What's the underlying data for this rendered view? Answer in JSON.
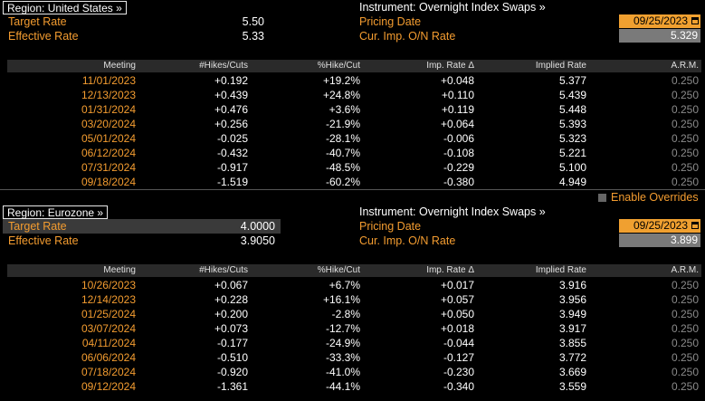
{
  "us": {
    "region_label": "Region: United States »",
    "target_rate_label": "Target Rate",
    "target_rate_value": "5.50",
    "effective_rate_label": "Effective Rate",
    "effective_rate_value": "5.33",
    "instrument": "Instrument: Overnight Index Swaps »",
    "pricing_date_label": "Pricing Date",
    "pricing_date_value": "09/25/2023",
    "cur_imp_label": "Cur. Imp. O/N Rate",
    "cur_imp_value": "5.329",
    "headers": [
      "Meeting",
      "#Hikes/Cuts",
      "%Hike/Cut",
      "Imp. Rate Δ",
      "Implied Rate",
      "A.R.M."
    ],
    "rows": [
      [
        "11/01/2023",
        "+0.192",
        "+19.2%",
        "+0.048",
        "5.377",
        "0.250"
      ],
      [
        "12/13/2023",
        "+0.439",
        "+24.8%",
        "+0.110",
        "5.439",
        "0.250"
      ],
      [
        "01/31/2024",
        "+0.476",
        "+3.6%",
        "+0.119",
        "5.448",
        "0.250"
      ],
      [
        "03/20/2024",
        "+0.256",
        "-21.9%",
        "+0.064",
        "5.393",
        "0.250"
      ],
      [
        "05/01/2024",
        "-0.025",
        "-28.1%",
        "-0.006",
        "5.323",
        "0.250"
      ],
      [
        "06/12/2024",
        "-0.432",
        "-40.7%",
        "-0.108",
        "5.221",
        "0.250"
      ],
      [
        "07/31/2024",
        "-0.917",
        "-48.5%",
        "-0.229",
        "5.100",
        "0.250"
      ],
      [
        "09/18/2024",
        "-1.519",
        "-60.2%",
        "-0.380",
        "4.949",
        "0.250"
      ]
    ]
  },
  "enable_overrides_label": "Enable Overrides",
  "eu": {
    "region_label": "Region: Eurozone »",
    "target_rate_label": "Target Rate",
    "target_rate_value": "4.0000",
    "effective_rate_label": "Effective Rate",
    "effective_rate_value": "3.9050",
    "instrument": "Instrument: Overnight Index Swaps »",
    "pricing_date_label": "Pricing Date",
    "pricing_date_value": "09/25/2023",
    "cur_imp_label": "Cur. Imp. O/N Rate",
    "cur_imp_value": "3.899",
    "headers": [
      "Meeting",
      "#Hikes/Cuts",
      "%Hike/Cut",
      "Imp. Rate Δ",
      "Implied Rate",
      "A.R.M."
    ],
    "rows": [
      [
        "10/26/2023",
        "+0.067",
        "+6.7%",
        "+0.017",
        "3.916",
        "0.250"
      ],
      [
        "12/14/2023",
        "+0.228",
        "+16.1%",
        "+0.057",
        "3.956",
        "0.250"
      ],
      [
        "01/25/2024",
        "+0.200",
        "-2.8%",
        "+0.050",
        "3.949",
        "0.250"
      ],
      [
        "03/07/2024",
        "+0.073",
        "-12.7%",
        "+0.018",
        "3.917",
        "0.250"
      ],
      [
        "04/11/2024",
        "-0.177",
        "-24.9%",
        "-0.044",
        "3.855",
        "0.250"
      ],
      [
        "06/06/2024",
        "-0.510",
        "-33.3%",
        "-0.127",
        "3.772",
        "0.250"
      ],
      [
        "07/18/2024",
        "-0.920",
        "-41.0%",
        "-0.230",
        "3.669",
        "0.250"
      ],
      [
        "09/12/2024",
        "-1.361",
        "-44.1%",
        "-0.340",
        "3.559",
        "0.250"
      ]
    ]
  }
}
